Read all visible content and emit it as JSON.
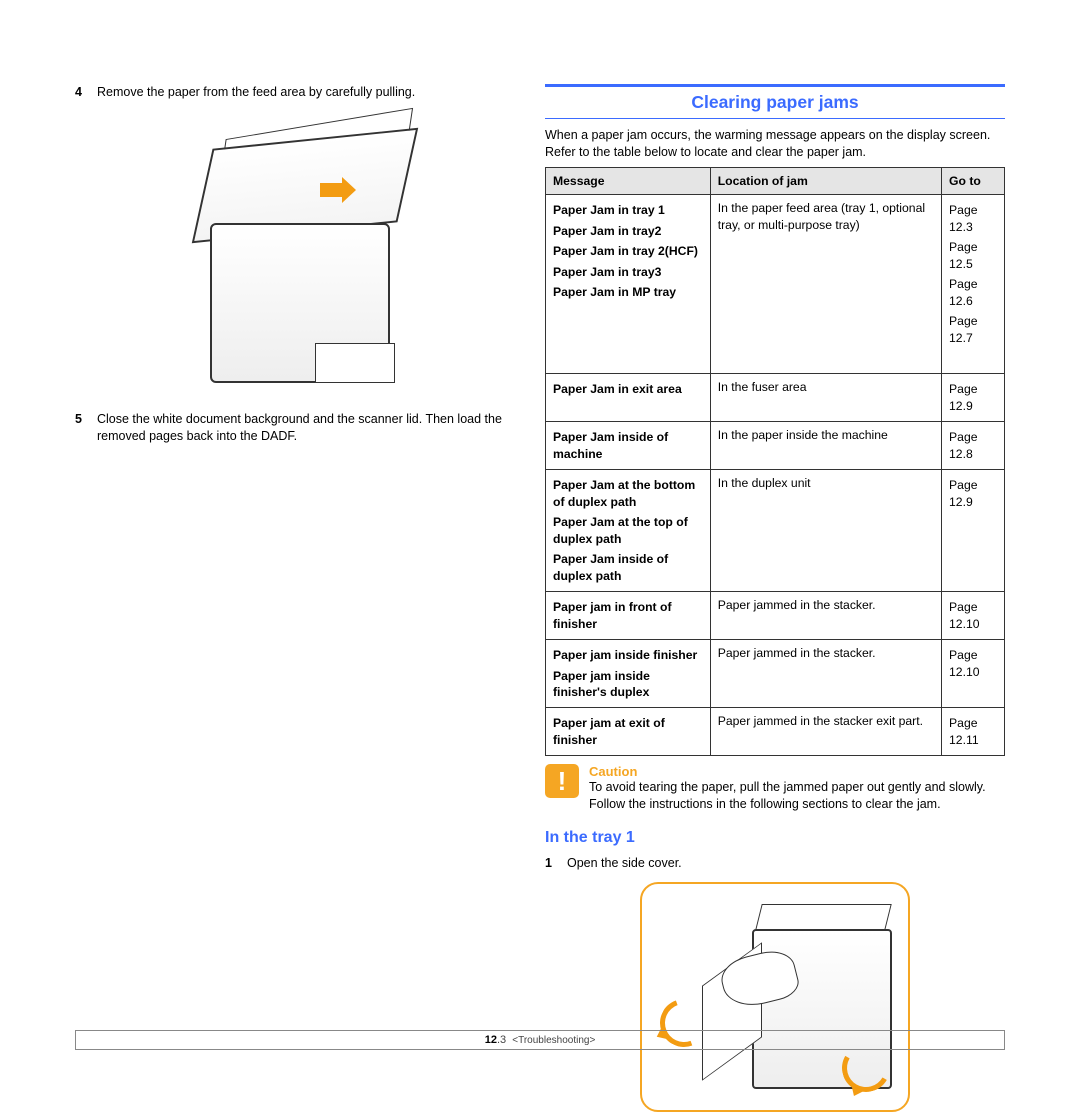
{
  "leftSteps": [
    {
      "num": "4",
      "text": "Remove the paper from the feed area by carefully pulling."
    },
    {
      "num": "5",
      "text": "Close the white document background and the scanner lid. Then load the removed pages back into the DADF."
    }
  ],
  "sectionTitle": "Clearing paper jams",
  "intro": "When a paper jam occurs, the warming message appears on the display screen. Refer to the table below to locate and clear the paper jam.",
  "table": {
    "headers": [
      "Message",
      "Location of jam",
      "Go to"
    ],
    "rows": [
      {
        "messages": [
          "Paper Jam in tray 1",
          "Paper Jam in tray2",
          "Paper Jam in tray 2(HCF)",
          "Paper Jam in tray3",
          "Paper Jam in MP tray"
        ],
        "location": "In the paper feed area (tray 1, optional tray, or multi-purpose tray)",
        "gotos": [
          "Page 12.3",
          "Page 12.5",
          "Page 12.6",
          "Page 12.7",
          ""
        ]
      },
      {
        "messages": [
          "Paper Jam in exit area"
        ],
        "location": "In the fuser area",
        "gotos": [
          "Page 12.9"
        ]
      },
      {
        "messages": [
          "Paper Jam inside of machine"
        ],
        "location": "In the paper inside the machine",
        "gotos": [
          "Page 12.8"
        ]
      },
      {
        "messages": [
          "Paper Jam at the bottom of duplex path",
          "Paper Jam at the top of duplex path",
          "Paper Jam inside of duplex path"
        ],
        "location": "In the duplex unit",
        "gotos": [
          "Page 12.9",
          "",
          ""
        ]
      },
      {
        "messages": [
          "Paper jam in front of finisher"
        ],
        "location": "Paper jammed in the stacker.",
        "gotos": [
          "Page 12.10"
        ]
      },
      {
        "messages": [
          "Paper jam inside finisher",
          "Paper jam inside finisher's duplex"
        ],
        "location": "Paper jammed in the stacker.",
        "gotos": [
          "Page 12.10",
          ""
        ]
      },
      {
        "messages": [
          "Paper jam at exit of finisher"
        ],
        "location": "Paper jammed in the stacker exit part.",
        "gotos": [
          "Page 12.11"
        ]
      }
    ]
  },
  "caution": {
    "title": "Caution",
    "text": "To avoid tearing the paper, pull the jammed paper out gently and slowly. Follow the instructions in the following sections to clear the jam."
  },
  "subsection": "In the tray 1",
  "step1": {
    "num": "1",
    "text": "Open the side cover."
  },
  "footer": {
    "page": "12",
    "sub": ".3",
    "chapter": "<Troubleshooting>"
  },
  "colors": {
    "accent_blue": "#3b6bff",
    "accent_orange": "#f5a623",
    "header_bg": "#e5e5e5",
    "border": "#333333"
  }
}
